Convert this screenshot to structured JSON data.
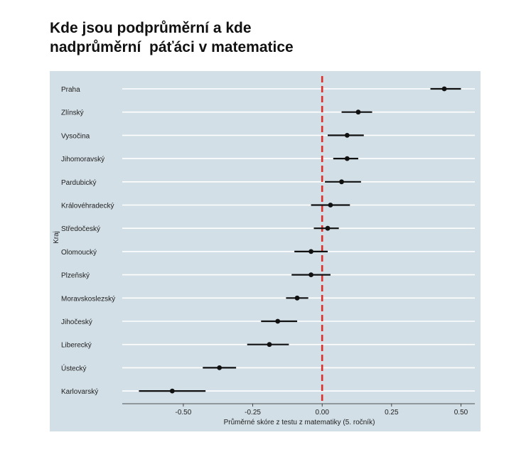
{
  "title_lines": [
    "Kde jsou podprůměrní a kde",
    "nadprůměrní  páťáci v matematice"
  ],
  "chart_data": {
    "type": "scatter",
    "subtype": "dot-with-interval",
    "title": "Kde jsou podprůměrní a kde nadprůměrní  páťáci v matematice",
    "xlabel": "Průměrné skóre z testu z matematiky (5. ročník)",
    "ylabel": "Kraj",
    "xlim": [
      -0.72,
      0.55
    ],
    "xticks": [
      -0.5,
      -0.25,
      0.0,
      0.25,
      0.5
    ],
    "xtick_labels": [
      "-0.50",
      "-0.25",
      "0.00",
      "0.25",
      "0.50"
    ],
    "reference_line": 0,
    "grid": "horizontal",
    "categories": [
      "Praha",
      "Zlínský",
      "Vysočina",
      "Jihomoravský",
      "Pardubický",
      "Královéhradecký",
      "Středočeský",
      "Olomoucký",
      "Plzeňský",
      "Moravskoslezský",
      "Jihočeský",
      "Liberecký",
      "Ústecký",
      "Karlovarský"
    ],
    "values": [
      0.44,
      0.13,
      0.09,
      0.09,
      0.07,
      0.03,
      0.02,
      -0.04,
      -0.04,
      -0.09,
      -0.16,
      -0.19,
      -0.37,
      -0.54
    ],
    "lower": [
      0.39,
      0.07,
      0.02,
      0.04,
      0.01,
      -0.04,
      -0.03,
      -0.1,
      -0.11,
      -0.13,
      -0.22,
      -0.27,
      -0.43,
      -0.66
    ],
    "upper": [
      0.5,
      0.18,
      0.15,
      0.13,
      0.14,
      0.1,
      0.06,
      0.02,
      0.03,
      -0.05,
      -0.09,
      -0.12,
      -0.31,
      -0.42
    ],
    "colors": {
      "panel_background": "#d3dfe6",
      "grid": "#ffffff",
      "point": "#111111",
      "interval": "#111111",
      "reference_line": "#d9302c",
      "text": "#222222"
    }
  }
}
